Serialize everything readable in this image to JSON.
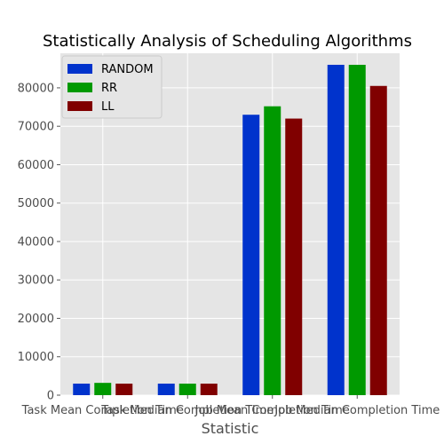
{
  "chart_data": {
    "type": "bar",
    "title": "Statistically Analysis of Scheduling Algorithms",
    "xlabel": "Statistic",
    "ylabel": "",
    "categories": [
      "Task Mean Completion Time",
      "Task Median Completion Time",
      "Job Mean Completion Time",
      "Job Median Completion Time"
    ],
    "series": [
      {
        "name": "RANDOM",
        "color": "#0033cc",
        "values": [
          3000,
          3000,
          73000,
          86000
        ]
      },
      {
        "name": "RR",
        "color": "#009900",
        "values": [
          3200,
          3000,
          75200,
          86000
        ]
      },
      {
        "name": "LL",
        "color": "#800000",
        "values": [
          3000,
          3000,
          72000,
          80500
        ]
      }
    ],
    "ylim": [
      0,
      89000
    ],
    "yticks": [
      0,
      10000,
      20000,
      30000,
      40000,
      50000,
      60000,
      70000,
      80000
    ],
    "grid": true,
    "legend": "upper-left",
    "plot_background": "#e5e5e5"
  }
}
